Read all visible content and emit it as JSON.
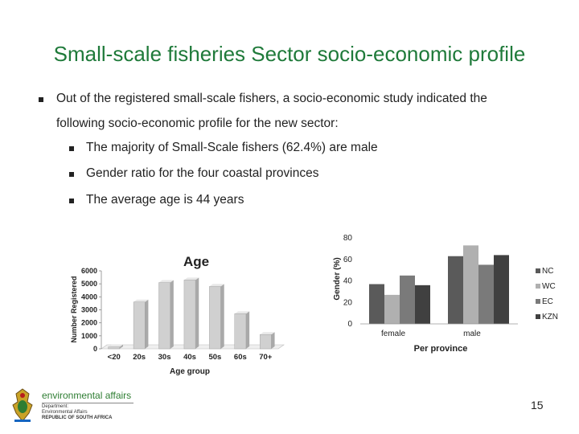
{
  "slide": {
    "title": "Small-scale fisheries Sector socio-economic profile",
    "intro_line1": "Out of the registered small-scale fishers, a socio-economic study indicated the",
    "intro_line2": "following  socio-economic profile for the new sector:",
    "sub_bullets": [
      "The majority of Small-Scale fishers (62.4%) are  male",
      "Gender ratio for the four coastal provinces",
      "The average age is 44 years"
    ],
    "page_number": "15"
  },
  "logo": {
    "brand": "environmental affairs",
    "line1": "Department:",
    "line2": "Environmental Affairs",
    "line3": "REPUBLIC OF SOUTH AFRICA"
  },
  "colors": {
    "title": "#1f7a3a",
    "bar_3d": "#d0d0d0",
    "nc": "#5a5a5a",
    "wc": "#b0b0b0",
    "ec": "#7a7a7a",
    "kzn": "#404040"
  },
  "chart_data": [
    {
      "type": "bar",
      "title": "Age",
      "xlabel": "Age group",
      "ylabel": "Number Registered",
      "categories": [
        "<20",
        "20s",
        "30s",
        "40s",
        "50s",
        "60s",
        "70+"
      ],
      "values": [
        150,
        3600,
        5100,
        5300,
        4800,
        2700,
        1100
      ],
      "ylim": [
        0,
        6000
      ],
      "yticks": [
        0,
        1000,
        2000,
        3000,
        4000,
        5000,
        6000
      ],
      "grid": false,
      "style": "3d"
    },
    {
      "type": "bar",
      "title": "",
      "xlabel": "Per province",
      "ylabel": "Gender (%)",
      "categories": [
        "female",
        "male"
      ],
      "series": [
        {
          "name": "NC",
          "values": [
            37,
            63
          ]
        },
        {
          "name": "WC",
          "values": [
            27,
            73
          ]
        },
        {
          "name": "EC",
          "values": [
            45,
            55
          ]
        },
        {
          "name": "KZN",
          "values": [
            36,
            64
          ]
        }
      ],
      "ylim": [
        0,
        80
      ],
      "yticks": [
        0,
        20,
        40,
        60,
        80
      ],
      "legend": "right",
      "grid": false
    }
  ]
}
